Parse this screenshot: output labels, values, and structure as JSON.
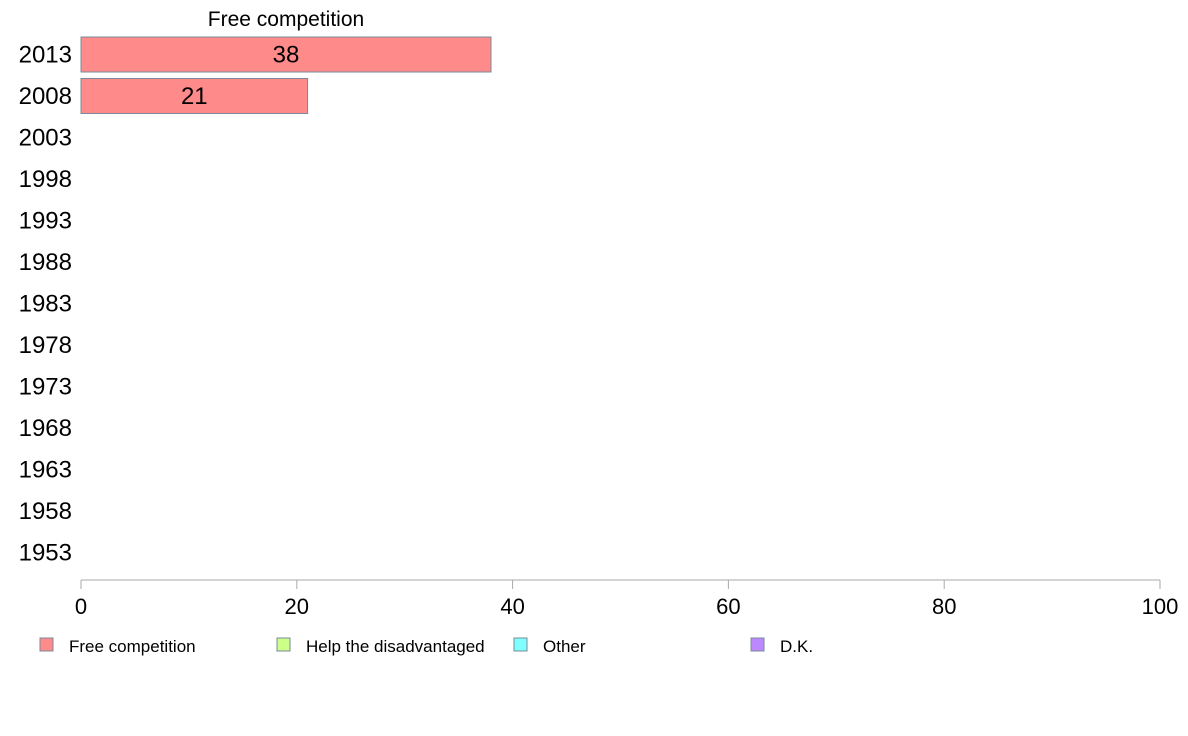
{
  "chart_data": {
    "type": "bar",
    "orientation": "horizontal",
    "title": "Free competition",
    "categories": [
      "2013",
      "2008",
      "2003",
      "1998",
      "1993",
      "1988",
      "1983",
      "1978",
      "1973",
      "1968",
      "1963",
      "1958",
      "1953"
    ],
    "series": [
      {
        "name": "Free competition",
        "color": "#ff8a8a",
        "values": [
          38,
          21,
          null,
          null,
          null,
          null,
          null,
          null,
          null,
          null,
          null,
          null,
          null
        ]
      },
      {
        "name": "Help the disadvantaged",
        "color": "#ccff88",
        "values": [
          null,
          null,
          null,
          null,
          null,
          null,
          null,
          null,
          null,
          null,
          null,
          null,
          null
        ]
      },
      {
        "name": "Other",
        "color": "#80ffff",
        "values": [
          null,
          null,
          null,
          null,
          null,
          null,
          null,
          null,
          null,
          null,
          null,
          null,
          null
        ]
      },
      {
        "name": "D.K.",
        "color": "#bb88ff",
        "values": [
          null,
          null,
          null,
          null,
          null,
          null,
          null,
          null,
          null,
          null,
          null,
          null,
          null
        ]
      }
    ],
    "xlim": [
      0,
      100
    ],
    "xticks": [
      0,
      20,
      40,
      60,
      80,
      100
    ],
    "grid": false,
    "legend_position": "bottom"
  }
}
